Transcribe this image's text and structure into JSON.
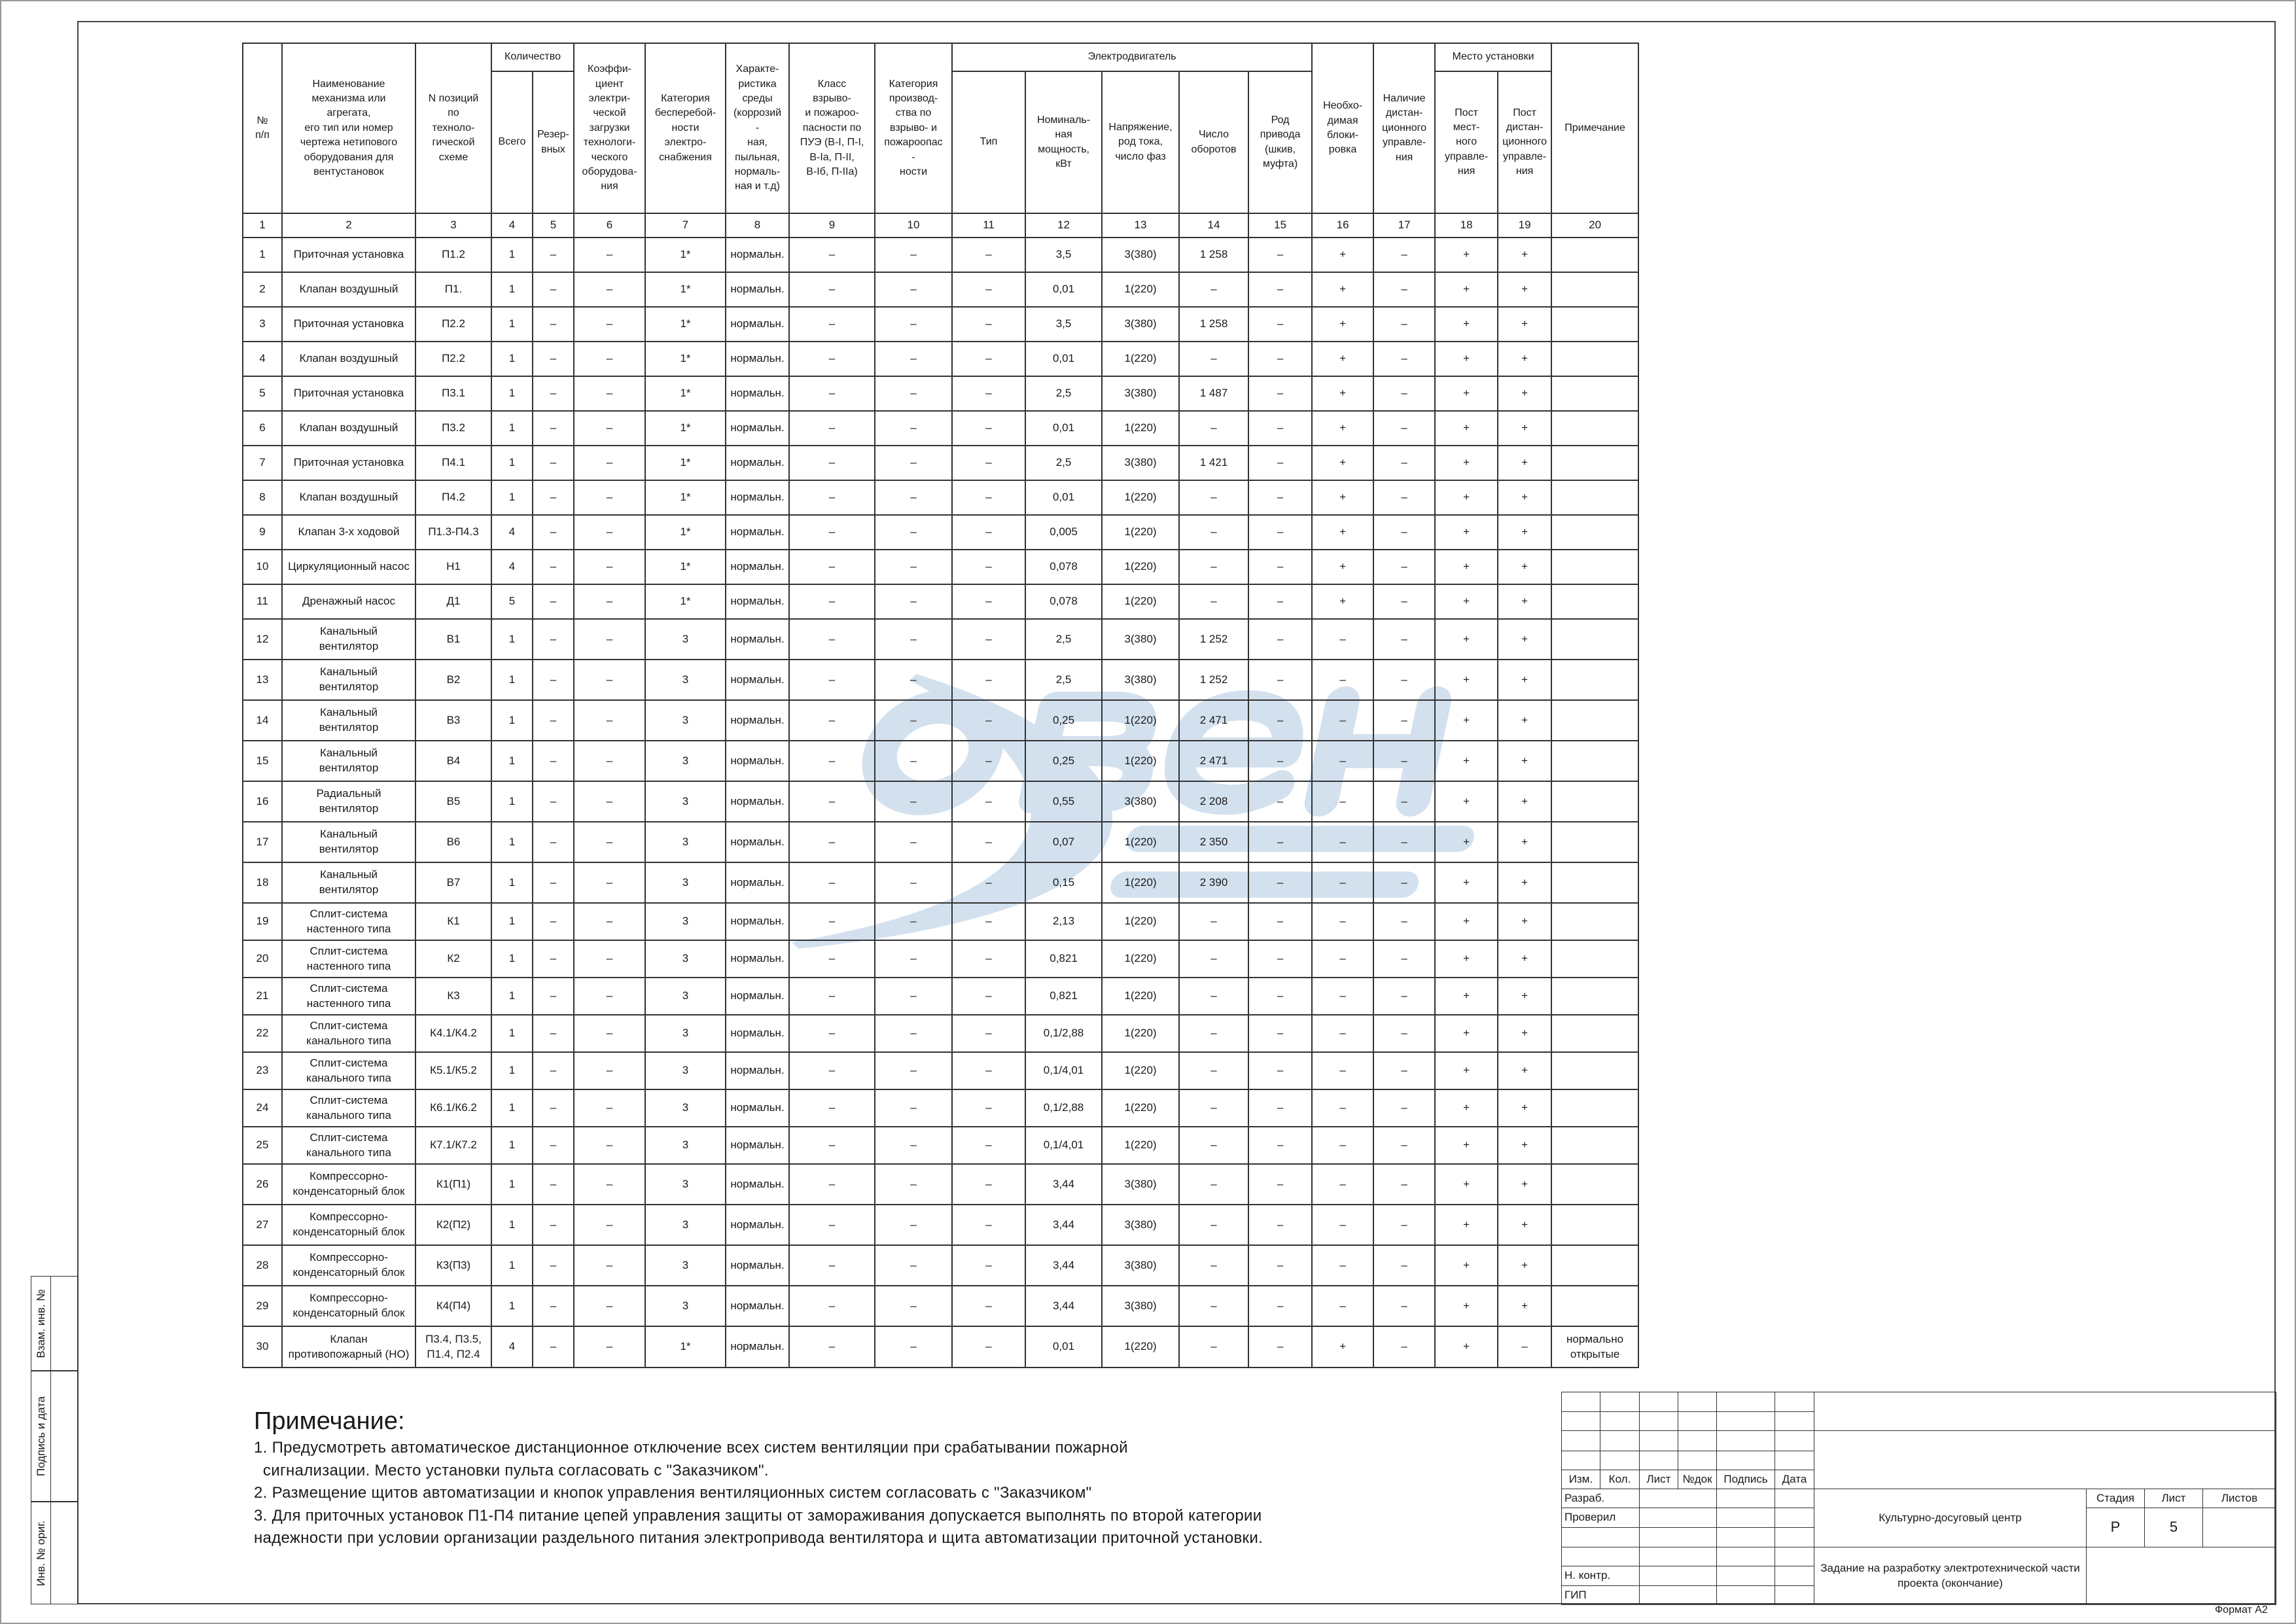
{
  "table": {
    "header": {
      "group_quantity": "Количество",
      "group_motor": "Электродвигатель",
      "group_place": "Место установки",
      "columns": [
        "№\nп/п",
        "Наименование\nмеханизма или\nагрегата,\nего тип или номер\nчертежа нетипового\nоборудования для\nвентустановок",
        "N позиций\nпо\nтехноло-\nгической\nсхеме",
        "Всего",
        "Резер-\nвных",
        "Коэффи-\nциент\nэлектри-\nческой\nзагрузки\nтехнологи-\nческого\nоборудова-\nния",
        "Категория\nбесперебой-\nности\nэлектро-\nснабжения",
        "Характе-\nристика\nсреды\n(коррозий\n-\nная,\nпыльная,\nнормаль-\nная и т.д)",
        "Класс\nвзрыво-\nи пожароо-\nпасности по\nПУЭ (В-I, П-I,\nВ-Iа, П-II,\nВ-Iб, П-IIа)",
        "Категория\nпроизвод-\nства по\nвзрыво- и\nпожароопас\n-\nности",
        "Тип",
        "Номиналь-\nная\nмощность,\nкВт",
        "Напряжение,\nрод тока,\nчисло фаз",
        "Число\nоборотов",
        "Род\nпривода\n(шкив,\nмуфта)",
        "Необхо-\nдимая\nблоки-\nровка",
        "Наличие\nдистан-\nционного\nуправле-\nния",
        "Пост\nмест-\nного\nуправле-\nния",
        "Пост\nдистан-\nционного\nуправле-\nния",
        "Примечание"
      ]
    },
    "column_numbers": [
      "1",
      "2",
      "3",
      "4",
      "5",
      "6",
      "7",
      "8",
      "9",
      "10",
      "11",
      "12",
      "13",
      "14",
      "15",
      "16",
      "17",
      "18",
      "19",
      "20"
    ],
    "rows": [
      [
        "1",
        "Приточная установка",
        "П1.2",
        "1",
        "–",
        "–",
        "1*",
        "нормальн.",
        "–",
        "–",
        "–",
        "3,5",
        "3(380)",
        "1  258",
        "–",
        "+",
        "–",
        "+",
        "+",
        ""
      ],
      [
        "2",
        "Клапан воздушный",
        "П1.",
        "1",
        "–",
        "–",
        "1*",
        "нормальн.",
        "–",
        "–",
        "–",
        "0,01",
        "1(220)",
        "–",
        "–",
        "+",
        "–",
        "+",
        "+",
        ""
      ],
      [
        "3",
        "Приточная установка",
        "П2.2",
        "1",
        "–",
        "–",
        "1*",
        "нормальн.",
        "–",
        "–",
        "–",
        "3,5",
        "3(380)",
        "1  258",
        "–",
        "+",
        "–",
        "+",
        "+",
        ""
      ],
      [
        "4",
        "Клапан воздушный",
        "П2.2",
        "1",
        "–",
        "–",
        "1*",
        "нормальн.",
        "–",
        "–",
        "–",
        "0,01",
        "1(220)",
        "–",
        "–",
        "+",
        "–",
        "+",
        "+",
        ""
      ],
      [
        "5",
        "Приточная установка",
        "П3.1",
        "1",
        "–",
        "–",
        "1*",
        "нормальн.",
        "–",
        "–",
        "–",
        "2,5",
        "3(380)",
        "1 487",
        "–",
        "+",
        "–",
        "+",
        "+",
        ""
      ],
      [
        "6",
        "Клапан воздушный",
        "П3.2",
        "1",
        "–",
        "–",
        "1*",
        "нормальн.",
        "–",
        "–",
        "–",
        "0,01",
        "1(220)",
        "–",
        "–",
        "+",
        "–",
        "+",
        "+",
        ""
      ],
      [
        "7",
        "Приточная установка",
        "П4.1",
        "1",
        "–",
        "–",
        "1*",
        "нормальн.",
        "–",
        "–",
        "–",
        "2,5",
        "3(380)",
        "1 421",
        "–",
        "+",
        "–",
        "+",
        "+",
        ""
      ],
      [
        "8",
        "Клапан воздушный",
        "П4.2",
        "1",
        "–",
        "–",
        "1*",
        "нормальн.",
        "–",
        "–",
        "–",
        "0,01",
        "1(220)",
        "–",
        "–",
        "+",
        "–",
        "+",
        "+",
        ""
      ],
      [
        "9",
        "Клапан 3-х ходовой",
        "П1.3-П4.3",
        "4",
        "–",
        "–",
        "1*",
        "нормальн.",
        "–",
        "–",
        "–",
        "0,005",
        "1(220)",
        "–",
        "–",
        "+",
        "–",
        "+",
        "+",
        ""
      ],
      [
        "10",
        "Циркуляционный насос",
        "Н1",
        "4",
        "–",
        "–",
        "1*",
        "нормальн.",
        "–",
        "–",
        "–",
        "0,078",
        "1(220)",
        "–",
        "–",
        "+",
        "–",
        "+",
        "+",
        ""
      ],
      [
        "11",
        "Дренажный насос",
        "Д1",
        "5",
        "–",
        "–",
        "1*",
        "нормальн.",
        "–",
        "–",
        "–",
        "0,078",
        "1(220)",
        "–",
        "–",
        "+",
        "–",
        "+",
        "+",
        ""
      ],
      [
        "12",
        "Канальный\nвентилятор",
        "В1",
        "1",
        "–",
        "–",
        "3",
        "нормальн.",
        "–",
        "–",
        "–",
        "2,5",
        "3(380)",
        "1  252",
        "–",
        "–",
        "–",
        "+",
        "+",
        ""
      ],
      [
        "13",
        "Канальный\nвентилятор",
        "В2",
        "1",
        "–",
        "–",
        "3",
        "нормальн.",
        "–",
        "–",
        "–",
        "2,5",
        "3(380)",
        "1  252",
        "–",
        "–",
        "–",
        "+",
        "+",
        ""
      ],
      [
        "14",
        "Канальный\nвентилятор",
        "В3",
        "1",
        "–",
        "–",
        "3",
        "нормальн.",
        "–",
        "–",
        "–",
        "0,25",
        "1(220)",
        "2  471",
        "–",
        "–",
        "–",
        "+",
        "+",
        ""
      ],
      [
        "15",
        "Канальный\nвентилятор",
        "В4",
        "1",
        "–",
        "–",
        "3",
        "нормальн.",
        "–",
        "–",
        "–",
        "0,25",
        "1(220)",
        "2  471",
        "–",
        "–",
        "–",
        "+",
        "+",
        ""
      ],
      [
        "16",
        "Радиальный\nвентилятор",
        "В5",
        "1",
        "–",
        "–",
        "3",
        "нормальн.",
        "–",
        "–",
        "–",
        "0,55",
        "3(380)",
        "2  208",
        "–",
        "–",
        "–",
        "+",
        "+",
        ""
      ],
      [
        "17",
        "Канальный\nвентилятор",
        "В6",
        "1",
        "–",
        "–",
        "3",
        "нормальн.",
        "–",
        "–",
        "–",
        "0,07",
        "1(220)",
        "2  350",
        "–",
        "–",
        "–",
        "+",
        "+",
        ""
      ],
      [
        "18",
        "Канальный\nвентилятор",
        "В7",
        "1",
        "–",
        "–",
        "3",
        "нормальн.",
        "–",
        "–",
        "–",
        "0,15",
        "1(220)",
        "2  390",
        "–",
        "–",
        "–",
        "+",
        "+",
        ""
      ],
      [
        "19",
        "Сплит-система\nнастенного типа",
        "К1",
        "1",
        "–",
        "–",
        "3",
        "нормальн.",
        "–",
        "–",
        "–",
        "2,13",
        "1(220)",
        "–",
        "–",
        "–",
        "–",
        "+",
        "+",
        ""
      ],
      [
        "20",
        "Сплит-система\nнастенного типа",
        "К2",
        "1",
        "–",
        "–",
        "3",
        "нормальн.",
        "–",
        "–",
        "–",
        "0,821",
        "1(220)",
        "–",
        "–",
        "–",
        "–",
        "+",
        "+",
        ""
      ],
      [
        "21",
        "Сплит-система\nнастенного типа",
        "К3",
        "1",
        "–",
        "–",
        "3",
        "нормальн.",
        "–",
        "–",
        "–",
        "0,821",
        "1(220)",
        "–",
        "–",
        "–",
        "–",
        "+",
        "+",
        ""
      ],
      [
        "22",
        "Сплит-система\nканального типа",
        "К4.1/К4.2",
        "1",
        "–",
        "–",
        "3",
        "нормальн.",
        "–",
        "–",
        "–",
        "0,1/2,88",
        "1(220)",
        "–",
        "–",
        "–",
        "–",
        "+",
        "+",
        ""
      ],
      [
        "23",
        "Сплит-система\nканального типа",
        "К5.1/К5.2",
        "1",
        "–",
        "–",
        "3",
        "нормальн.",
        "–",
        "–",
        "–",
        "0,1/4,01",
        "1(220)",
        "–",
        "–",
        "–",
        "–",
        "+",
        "+",
        ""
      ],
      [
        "24",
        "Сплит-система\nканального типа",
        "К6.1/К6.2",
        "1",
        "–",
        "–",
        "3",
        "нормальн.",
        "–",
        "–",
        "–",
        "0,1/2,88",
        "1(220)",
        "–",
        "–",
        "–",
        "–",
        "+",
        "+",
        ""
      ],
      [
        "25",
        "Сплит-система\nканального типа",
        "К7.1/К7.2",
        "1",
        "–",
        "–",
        "3",
        "нормальн.",
        "–",
        "–",
        "–",
        "0,1/4,01",
        "1(220)",
        "–",
        "–",
        "–",
        "–",
        "+",
        "+",
        ""
      ],
      [
        "26",
        "Компрессорно-\nконденсаторный блок",
        "К1(П1)",
        "1",
        "–",
        "–",
        "3",
        "нормальн.",
        "–",
        "–",
        "–",
        "3,44",
        "3(380)",
        "–",
        "–",
        "–",
        "–",
        "+",
        "+",
        ""
      ],
      [
        "27",
        "Компрессорно-\nконденсаторный блок",
        "К2(П2)",
        "1",
        "–",
        "–",
        "3",
        "нормальн.",
        "–",
        "–",
        "–",
        "3,44",
        "3(380)",
        "–",
        "–",
        "–",
        "–",
        "+",
        "+",
        ""
      ],
      [
        "28",
        "Компрессорно-\nконденсаторный блок",
        "К3(П3)",
        "1",
        "–",
        "–",
        "3",
        "нормальн.",
        "–",
        "–",
        "–",
        "3,44",
        "3(380)",
        "–",
        "–",
        "–",
        "–",
        "+",
        "+",
        ""
      ],
      [
        "29",
        "Компрессорно-\nконденсаторный блок",
        "К4(П4)",
        "1",
        "–",
        "–",
        "3",
        "нормальн.",
        "–",
        "–",
        "–",
        "3,44",
        "3(380)",
        "–",
        "–",
        "–",
        "–",
        "+",
        "+",
        ""
      ],
      [
        "30",
        "Клапан\nпротивопожарный (НО)",
        "П3.4,  П3.5,\nП1.4,  П2.4",
        "4",
        "–",
        "–",
        "1*",
        "нормальн.",
        "–",
        "–",
        "–",
        "0,01",
        "1(220)",
        "–",
        "–",
        "+",
        "–",
        "+",
        "–",
        "нормально\nоткрытые"
      ]
    ]
  },
  "notes": {
    "title": "Примечание:",
    "lines": [
      "1. Предусмотреть автоматическое дистанционное отключение всех систем вентиляции при срабатывании пожарной",
      "  сигнализации. Место установки пульта согласовать с \"Заказчиком\".",
      "2. Размещение щитов автоматизации и кнопок управления вентиляционных систем согласовать с \"Заказчиком\"",
      "3. Для приточных установок П1-П4 питание цепей управления защиты от замораживания допускается выполнять по второй категории",
      "надежности при условии организации раздельного питания электропривода вентилятора и щита автоматизации приточной установки."
    ]
  },
  "title_block": {
    "change_labels": [
      "Изм.",
      "Кол.",
      "Лист",
      "№док",
      "Подпись",
      "Дата"
    ],
    "roles": [
      "Разраб.",
      "Проверил",
      "Н. контр.",
      "ГИП"
    ],
    "object_name": "Культурно-досуговый центр",
    "sheet_title": "Задание на разработку электротехнической части\nпроекта (окончание)",
    "stage_label": "Стадия",
    "sheet_label": "Лист",
    "sheets_label": "Листов",
    "stage": "Р",
    "sheet": "5"
  },
  "side_stamp": [
    "Взам. инв. №",
    "Подпись и дата",
    "Инв. № ориг."
  ],
  "format_label": "Формат А2",
  "watermark": {
    "word": "Овен",
    "line2": "управление",
    "line3": "климатом",
    "color": "#d3e1ef"
  }
}
